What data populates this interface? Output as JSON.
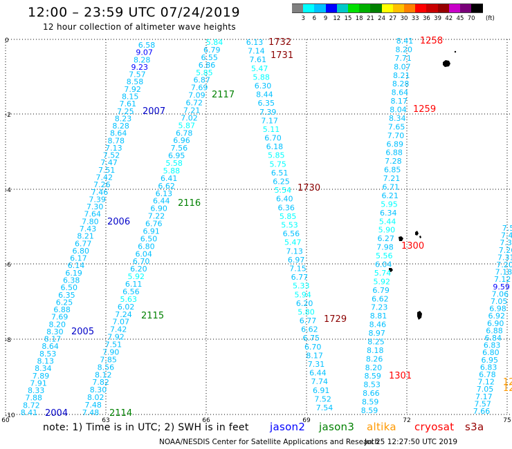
{
  "title": "12:00 – 23:59 UTC 07/24/2019",
  "subtitle": "12 hour collection of altimeter wave heights",
  "note": "note: 1) Time is in UTC; 2) SWH is in feet",
  "credit": "NOAA/NESDIS Center for Satellite Applications and Research",
  "timestamp": "Jul 25 12:27:50 UTC 2019",
  "color_scale": {
    "colors": [
      "#808080",
      "#00ffff",
      "#00c0ff",
      "#0000ff",
      "#00c8c8",
      "#00e000",
      "#00b000",
      "#008000",
      "#ffff00",
      "#ffc000",
      "#ff8000",
      "#ff0000",
      "#c80000",
      "#960000",
      "#c800c8",
      "#780078",
      "#000000"
    ],
    "labels": [
      "3",
      "6",
      "9",
      "12",
      "15",
      "18",
      "21",
      "24",
      "27",
      "30",
      "33",
      "36",
      "39",
      "42",
      "45",
      "70"
    ],
    "unit": "(ft)"
  },
  "legend": [
    {
      "label": "jason2",
      "color": "#0000ff"
    },
    {
      "label": "jason3",
      "color": "#008000"
    },
    {
      "label": "altika",
      "color": "#ff9900"
    },
    {
      "label": "cryosat",
      "color": "#ff0000"
    },
    {
      "label": "s3a",
      "color": "#960000"
    }
  ],
  "axes": {
    "x_ticks": [
      "60",
      "63",
      "66",
      "69",
      "72",
      "75"
    ],
    "y_ticks": [
      "0",
      "-2",
      "-4",
      "-6",
      "-8",
      "-10"
    ]
  },
  "tracks": [
    {
      "satellite": "jason2",
      "values": [
        "6.58",
        "9.07",
        "8.28",
        "9.23",
        "7.57",
        "8.58",
        "7.92",
        "8.15",
        "7.61",
        "7.25",
        "8.23",
        "8.28",
        "8.64",
        "8.78",
        "7.13",
        "7.52",
        "7.47",
        "7.51",
        "7.42",
        "7.26",
        "7.46",
        "7.39",
        "7.30",
        "7.64",
        "7.80",
        "7.43",
        "8.21",
        "6.77",
        "6.80",
        "6.17",
        "6.14",
        "6.19",
        "6.38",
        "6.50",
        "6.35",
        "6.25",
        "6.88",
        "7.69",
        "8.20",
        "8.30",
        "8.17",
        "8.64",
        "8.53",
        "8.13",
        "8.34",
        "7.89",
        "7.91",
        "8.33",
        "7.88",
        "8.72",
        "8.41"
      ]
    },
    {
      "satellite": "jason3",
      "values": [
        "5.84",
        "6.79",
        "6.55",
        "6.86",
        "5.85",
        "6.87",
        "7.69",
        "7.09",
        "6.72",
        "7.21",
        "7.02",
        "5.87",
        "6.78",
        "6.96",
        "7.56",
        "6.95",
        "5.58",
        "5.88",
        "6.41",
        "6.62",
        "6.13",
        "6.44",
        "6.90",
        "7.22",
        "6.76",
        "6.91",
        "6.50",
        "6.80",
        "6.04",
        "6.70",
        "6.20",
        "5.92",
        "6.11",
        "6.56",
        "5.63",
        "6.02",
        "7.24",
        "7.07",
        "7.42",
        "7.92",
        "7.51",
        "7.90",
        "7.85",
        "8.56",
        "8.12",
        "7.82",
        "8.30",
        "8.02",
        "7.48",
        "7.48"
      ]
    },
    {
      "satellite": "s3a",
      "values": [
        "6.13",
        "7.14",
        "7.61",
        "5.47",
        "5.88",
        "6.30",
        "8.44",
        "6.35",
        "7.39",
        "7.17",
        "5.11",
        "6.70",
        "6.18",
        "5.85",
        "5.75",
        "6.51",
        "6.25",
        "5.54",
        "6.40",
        "6.36",
        "5.85",
        "5.53",
        "6.56",
        "5.47",
        "7.13",
        "6.97",
        "7.15",
        "6.77",
        "5.33",
        "5.94",
        "6.20",
        "5.80",
        "6.77",
        "6.62",
        "6.75",
        "6.70",
        "8.17",
        "7.31",
        "6.44",
        "7.74",
        "6.91",
        "7.52",
        "7.54"
      ]
    },
    {
      "satellite": "cryosat",
      "values": [
        "8.41",
        "8.20",
        "7.71",
        "8.07",
        "8.21",
        "8.28",
        "8.64",
        "8.17",
        "8.04",
        "8.34",
        "7.65",
        "7.70",
        "6.89",
        "6.88",
        "7.28",
        "6.85",
        "7.21",
        "6.71",
        "6.21",
        "5.95",
        "6.34",
        "5.44",
        "5.90",
        "6.27",
        "7.98",
        "5.56",
        "6.04",
        "5.74",
        "5.92",
        "6.79",
        "6.62",
        "7.23",
        "8.81",
        "8.46",
        "8.97",
        "8.25",
        "8.18",
        "8.26",
        "8.20",
        "8.59",
        "8.53",
        "8.66",
        "8.59",
        "8.59"
      ]
    },
    {
      "satellite": "jason3",
      "values": [
        "7.53",
        "7.42",
        "7.35",
        "7.26",
        "7.31",
        "7.20",
        "7.18",
        "7.12",
        "9.59",
        "7.06",
        "7.05",
        "6.98",
        "6.92",
        "6.90",
        "6.88",
        "6.84",
        "6.83",
        "6.80",
        "6.95",
        "6.83",
        "6.78",
        "7.12",
        "7.05",
        "7.17",
        "7.57",
        "7.66"
      ]
    }
  ],
  "pass_labels": [
    {
      "text": "2007",
      "color": "#0000c8"
    },
    {
      "text": "2006",
      "color": "#0000c8"
    },
    {
      "text": "2005",
      "color": "#0000c8"
    },
    {
      "text": "2004",
      "color": "#0000c8"
    },
    {
      "text": "2117",
      "color": "#008000"
    },
    {
      "text": "2116",
      "color": "#008000"
    },
    {
      "text": "2115",
      "color": "#008000"
    },
    {
      "text": "2114",
      "color": "#008000"
    },
    {
      "text": "1732",
      "color": "#8b0000"
    },
    {
      "text": "1731",
      "color": "#8b0000"
    },
    {
      "text": "1730",
      "color": "#8b0000"
    },
    {
      "text": "1729",
      "color": "#8b0000"
    },
    {
      "text": "1258",
      "color": "#ff0000"
    },
    {
      "text": "1259",
      "color": "#ff0000"
    },
    {
      "text": "1300",
      "color": "#ff0000"
    },
    {
      "text": "1301",
      "color": "#ff0000"
    },
    {
      "text": "12",
      "color": "#ff9900"
    },
    {
      "text": "12",
      "color": "#ff9900"
    }
  ]
}
